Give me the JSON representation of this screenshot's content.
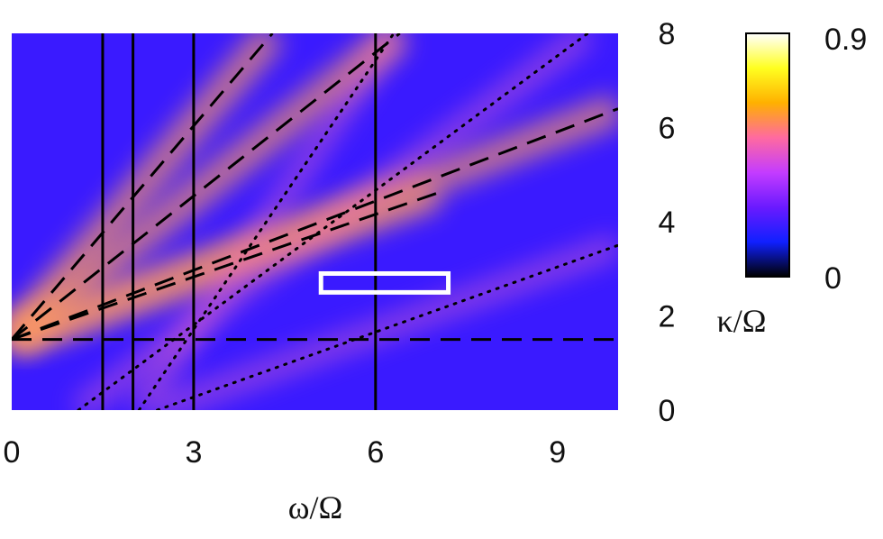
{
  "chart_data": {
    "type": "heatmap",
    "xlabel": "ω/Ω",
    "ylabel": "κ/Ω",
    "x_ticks": [
      "0",
      "3",
      "6",
      "9"
    ],
    "y_ticks": [
      "0",
      "2",
      "4",
      "6",
      "8"
    ],
    "xlim": [
      0,
      10
    ],
    "ylim": [
      0,
      8
    ],
    "colorbar": {
      "min_label": "0",
      "max_label": "0.9",
      "range": [
        0,
        0.9
      ],
      "colormap": [
        "#000000",
        "#1020ff",
        "#6a1aff",
        "#c43cff",
        "#ff6aa0",
        "#ffb000",
        "#ffff20",
        "#ffffff"
      ]
    },
    "background_color": "#3a1aff",
    "overlays": {
      "horizontal_dashed": {
        "y": 1.5
      },
      "vertical_solid": [
        1.5,
        2.0,
        3.0,
        6.0
      ],
      "radial_dashed": {
        "origin": [
          0,
          1.5
        ],
        "end_points": [
          [
            4.3,
            8
          ],
          [
            6.4,
            8
          ],
          [
            10,
            6.4
          ],
          [
            7.0,
            4.6
          ]
        ]
      },
      "dotted": [
        {
          "from": [
            1.1,
            0
          ],
          "to": [
            9.5,
            8
          ]
        },
        {
          "from": [
            2.1,
            0
          ],
          "to": [
            6.3,
            8
          ]
        },
        {
          "from": [
            2.4,
            0
          ],
          "to": [
            10,
            3.5
          ]
        }
      ]
    },
    "highlight_box": {
      "x": [
        5.1,
        7.2
      ],
      "y": [
        2.5,
        2.9
      ]
    },
    "bright_bands": [
      {
        "orientation": "vertical",
        "x": 6.0
      },
      {
        "orientation": "vertical",
        "x": 3.0
      },
      {
        "orientation": "horizontal",
        "y": 1.5
      },
      {
        "orientation": "horizontal",
        "y": 2.7
      }
    ]
  }
}
